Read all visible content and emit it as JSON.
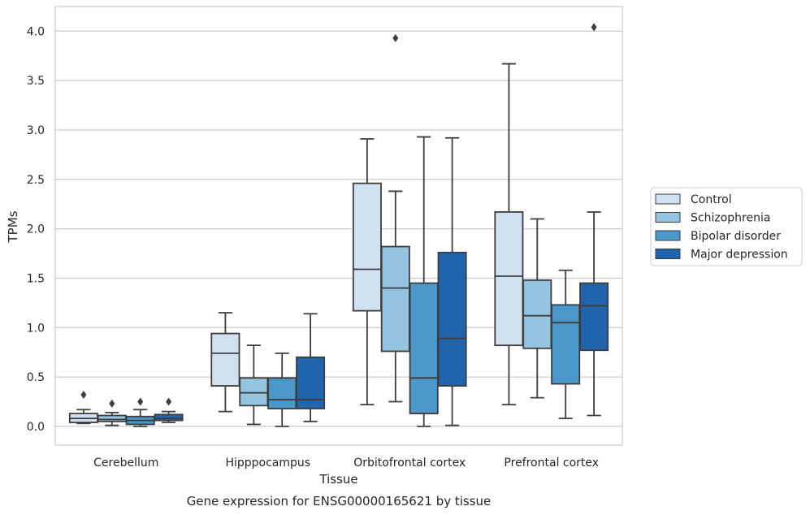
{
  "caption": "Gene expression for ENSG00000165621 by tissue",
  "chart_data": {
    "type": "box",
    "xlabel": "Tissue",
    "ylabel": "TPMs",
    "ylim": [
      -0.19,
      4.25
    ],
    "yticks": [
      0.0,
      0.5,
      1.0,
      1.5,
      2.0,
      2.5,
      3.0,
      3.5,
      4.0
    ],
    "ytick_labels": [
      "0.0",
      "0.5",
      "1.0",
      "1.5",
      "2.0",
      "2.5",
      "3.0",
      "3.5",
      "4.0"
    ],
    "grid": "horizontal",
    "legend_position": "right",
    "categories": [
      "Cerebellum",
      "Hipppocampus",
      "Orbitofrontal cortex",
      "Prefrontal cortex"
    ],
    "series": [
      {
        "name": "Control",
        "color": "#d0e1f2",
        "boxes": [
          {
            "whislo": 0.03,
            "q1": 0.04,
            "med": 0.08,
            "q3": 0.13,
            "whishi": 0.17,
            "fliers": [
              0.32
            ]
          },
          {
            "whislo": 0.15,
            "q1": 0.41,
            "med": 0.74,
            "q3": 0.94,
            "whishi": 1.15,
            "fliers": []
          },
          {
            "whislo": 0.22,
            "q1": 1.17,
            "med": 1.59,
            "q3": 2.46,
            "whishi": 2.91,
            "fliers": []
          },
          {
            "whislo": 0.22,
            "q1": 0.82,
            "med": 1.52,
            "q3": 2.17,
            "whishi": 3.67,
            "fliers": []
          }
        ]
      },
      {
        "name": "Schizophrenia",
        "color": "#94c4df",
        "boxes": [
          {
            "whislo": 0.01,
            "q1": 0.05,
            "med": 0.07,
            "q3": 0.11,
            "whishi": 0.14,
            "fliers": [
              0.23
            ]
          },
          {
            "whislo": 0.02,
            "q1": 0.21,
            "med": 0.34,
            "q3": 0.49,
            "whishi": 0.82,
            "fliers": []
          },
          {
            "whislo": 0.25,
            "q1": 0.76,
            "med": 1.4,
            "q3": 1.82,
            "whishi": 2.38,
            "fliers": [
              3.93
            ]
          },
          {
            "whislo": 0.29,
            "q1": 0.79,
            "med": 1.12,
            "q3": 1.48,
            "whishi": 2.1,
            "fliers": []
          }
        ]
      },
      {
        "name": "Bipolar disorder",
        "color": "#4a98c9",
        "boxes": [
          {
            "whislo": 0.0,
            "q1": 0.02,
            "med": 0.06,
            "q3": 0.1,
            "whishi": 0.17,
            "fliers": [
              0.25
            ]
          },
          {
            "whislo": 0.0,
            "q1": 0.18,
            "med": 0.27,
            "q3": 0.49,
            "whishi": 0.74,
            "fliers": []
          },
          {
            "whislo": 0.0,
            "q1": 0.13,
            "med": 0.49,
            "q3": 1.45,
            "whishi": 2.93,
            "fliers": []
          },
          {
            "whislo": 0.08,
            "q1": 0.43,
            "med": 1.05,
            "q3": 1.23,
            "whishi": 1.58,
            "fliers": []
          }
        ]
      },
      {
        "name": "Major depression",
        "color": "#2264ab",
        "boxes": [
          {
            "whislo": 0.04,
            "q1": 0.06,
            "med": 0.08,
            "q3": 0.12,
            "whishi": 0.15,
            "fliers": [
              0.25
            ]
          },
          {
            "whislo": 0.05,
            "q1": 0.18,
            "med": 0.27,
            "q3": 0.7,
            "whishi": 1.14,
            "fliers": []
          },
          {
            "whislo": 0.01,
            "q1": 0.41,
            "med": 0.89,
            "q3": 1.76,
            "whishi": 2.92,
            "fliers": []
          },
          {
            "whislo": 0.11,
            "q1": 0.77,
            "med": 1.22,
            "q3": 1.45,
            "whishi": 2.17,
            "fliers": [
              4.04
            ]
          }
        ]
      }
    ]
  }
}
